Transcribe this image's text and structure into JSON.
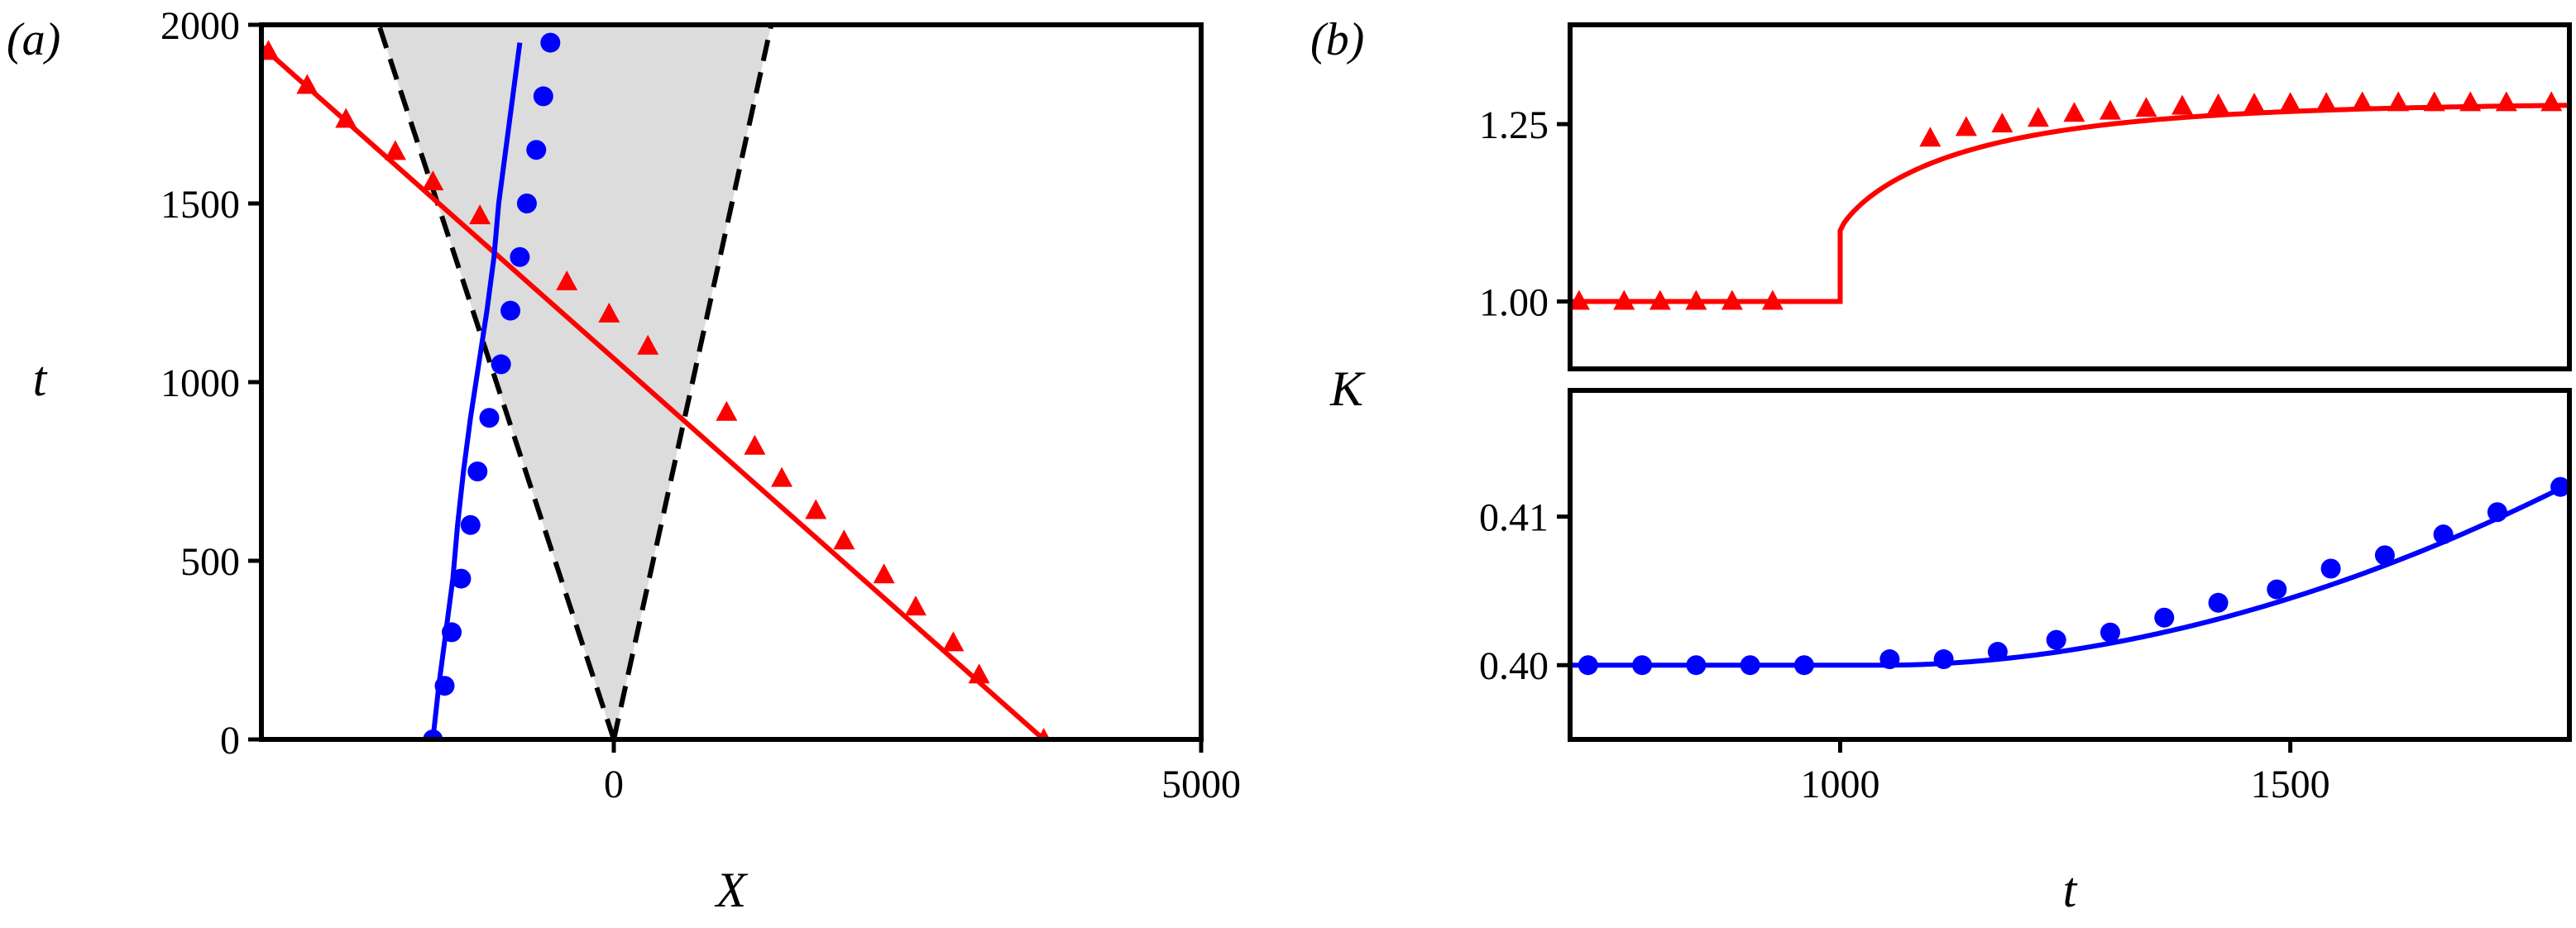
{
  "panels": {
    "a": "(a)",
    "b": "(b)"
  },
  "colors": {
    "red": "#ff0000",
    "blue": "#0000ff",
    "shade": "#dcdcdc",
    "dashed": "#000000"
  },
  "chart_data": [
    {
      "id": "a",
      "type": "line",
      "xlabel": "X",
      "ylabel": "t",
      "xlim": [
        -3000,
        5000
      ],
      "ylim": [
        0,
        2000
      ],
      "xticks": [
        "0",
        "5000"
      ],
      "yticks": [
        "0",
        "500",
        "1000",
        "1500",
        "2000"
      ],
      "shaded_cone": {
        "apex": [
          0,
          0
        ],
        "left_top_x": -2000,
        "right_top_x": 1340,
        "top_t": 2000
      },
      "series": [
        {
          "color": "red",
          "marker": "triangle",
          "line": [
            [
              -3000,
              1940
            ],
            [
              3660,
              0
            ]
          ],
          "markers": [
            [
              -2940,
              1925
            ],
            [
              -2610,
              1830
            ],
            [
              -2280,
              1735
            ],
            [
              -1860,
              1645
            ],
            [
              -1540,
              1560
            ],
            [
              -1140,
              1465
            ],
            [
              -400,
              1280
            ],
            [
              -40,
              1190
            ],
            [
              290,
              1100
            ],
            [
              960,
              915
            ],
            [
              1200,
              820
            ],
            [
              1430,
              730
            ],
            [
              1720,
              640
            ],
            [
              1960,
              555
            ],
            [
              2300,
              460
            ],
            [
              2570,
              370
            ],
            [
              2890,
              270
            ],
            [
              3110,
              180
            ],
            [
              3660,
              0
            ]
          ]
        },
        {
          "color": "blue",
          "marker": "circle",
          "line": [
            [
              -1540,
              0
            ],
            [
              -1490,
              150
            ],
            [
              -1430,
              300
            ],
            [
              -1370,
              450
            ],
            [
              -1330,
              600
            ],
            [
              -1280,
              750
            ],
            [
              -1220,
              900
            ],
            [
              -1150,
              1050
            ],
            [
              -1080,
              1200
            ],
            [
              -1020,
              1350
            ],
            [
              -980,
              1500
            ],
            [
              -920,
              1650
            ],
            [
              -860,
              1800
            ],
            [
              -800,
              1950
            ]
          ],
          "markers": [
            [
              -1540,
              0
            ],
            [
              -1440,
              150
            ],
            [
              -1380,
              300
            ],
            [
              -1300,
              450
            ],
            [
              -1220,
              600
            ],
            [
              -1160,
              750
            ],
            [
              -1060,
              900
            ],
            [
              -960,
              1050
            ],
            [
              -880,
              1200
            ],
            [
              -800,
              1350
            ],
            [
              -740,
              1500
            ],
            [
              -660,
              1650
            ],
            [
              -600,
              1800
            ],
            [
              -540,
              1950
            ]
          ]
        }
      ]
    },
    {
      "id": "b-top",
      "type": "line",
      "xlim": [
        700,
        1810
      ],
      "ylim": [
        0.905,
        1.39
      ],
      "yticks": [
        "1.00",
        "1.25"
      ],
      "series": [
        {
          "color": "red",
          "marker": "triangle",
          "curve": {
            "flat_until": 1000,
            "flat_value": 1.0,
            "jump_to": 1.1,
            "asymptote": 1.28,
            "tau": 145
          },
          "markers": [
            [
              710,
              1.0
            ],
            [
              760,
              1.0
            ],
            [
              800,
              1.0
            ],
            [
              840,
              1.0
            ],
            [
              880,
              1.0
            ],
            [
              925,
              1.0
            ],
            [
              1100,
              1.23
            ],
            [
              1140,
              1.245
            ],
            [
              1180,
              1.25
            ],
            [
              1220,
              1.258
            ],
            [
              1260,
              1.265
            ],
            [
              1300,
              1.268
            ],
            [
              1340,
              1.272
            ],
            [
              1380,
              1.275
            ],
            [
              1420,
              1.277
            ],
            [
              1460,
              1.278
            ],
            [
              1500,
              1.279
            ],
            [
              1540,
              1.279
            ],
            [
              1580,
              1.28
            ],
            [
              1620,
              1.28
            ],
            [
              1660,
              1.28
            ],
            [
              1700,
              1.28
            ],
            [
              1740,
              1.28
            ],
            [
              1790,
              1.28
            ]
          ]
        }
      ]
    },
    {
      "id": "b-bottom",
      "type": "line",
      "xlabel": "t",
      "xlim": [
        700,
        1810
      ],
      "ylim": [
        0.395,
        0.4185
      ],
      "xticks": [
        "1000",
        "1500"
      ],
      "yticks": [
        "0.40",
        "0.41"
      ],
      "series": [
        {
          "color": "blue",
          "marker": "circle",
          "curve": {
            "flat_until": 1050,
            "base": 0.4,
            "end_x": 1810,
            "end_y": 0.4122,
            "power": 1.9
          },
          "markers": [
            [
              720,
              0.4
            ],
            [
              780,
              0.4
            ],
            [
              840,
              0.4
            ],
            [
              900,
              0.4
            ],
            [
              960,
              0.4
            ],
            [
              1055,
              0.4004
            ],
            [
              1115,
              0.4004
            ],
            [
              1175,
              0.4009
            ],
            [
              1240,
              0.4017
            ],
            [
              1300,
              0.4022
            ],
            [
              1360,
              0.4032
            ],
            [
              1420,
              0.4042
            ],
            [
              1485,
              0.4051
            ],
            [
              1545,
              0.4065
            ],
            [
              1605,
              0.4074
            ],
            [
              1670,
              0.4088
            ],
            [
              1730,
              0.4103
            ],
            [
              1800,
              0.412
            ]
          ]
        }
      ]
    }
  ],
  "shared_ylabel_b": "K"
}
